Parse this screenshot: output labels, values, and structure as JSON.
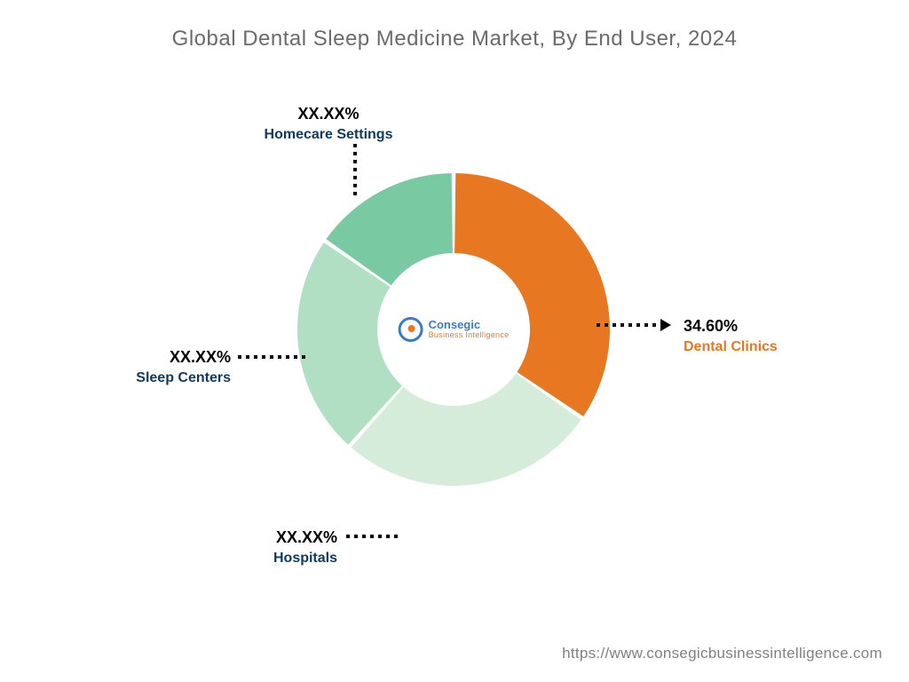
{
  "chart": {
    "type": "donut",
    "title": "Global Dental Sleep Medicine Market, By End User, 2024",
    "title_color": "#6b6b6b",
    "title_fontsize": 24,
    "background_color": "#ffffff",
    "outer_radius": 176,
    "inner_radius": 86,
    "gap_deg": 1.5,
    "start_angle": -90,
    "slices": [
      {
        "name": "Dental Clinics",
        "value": 34.6,
        "pct_label": "34.60%",
        "color": "#e87722"
      },
      {
        "name": "Hospitals",
        "value": 27.0,
        "pct_label": "XX.XX%",
        "color": "#d5ecdb"
      },
      {
        "name": "Sleep Centers",
        "value": 23.0,
        "pct_label": "XX.XX%",
        "color": "#b1dfc3"
      },
      {
        "name": "Homecare Settings",
        "value": 15.4,
        "pct_label": "XX.XX%",
        "color": "#79c9a3"
      }
    ],
    "label_pct_color": "#000000",
    "label_name_color": "#0f3a5f",
    "highlight_name_color": "#e87722",
    "dotted_color": "#000000"
  },
  "logo": {
    "main": "Consegic",
    "sub": "Business Intelligence",
    "primary_color": "#3a7bc8",
    "accent_color": "#e87722"
  },
  "footer": {
    "url": "https://www.consegicbusinessintelligence.com",
    "color": "#808080"
  }
}
